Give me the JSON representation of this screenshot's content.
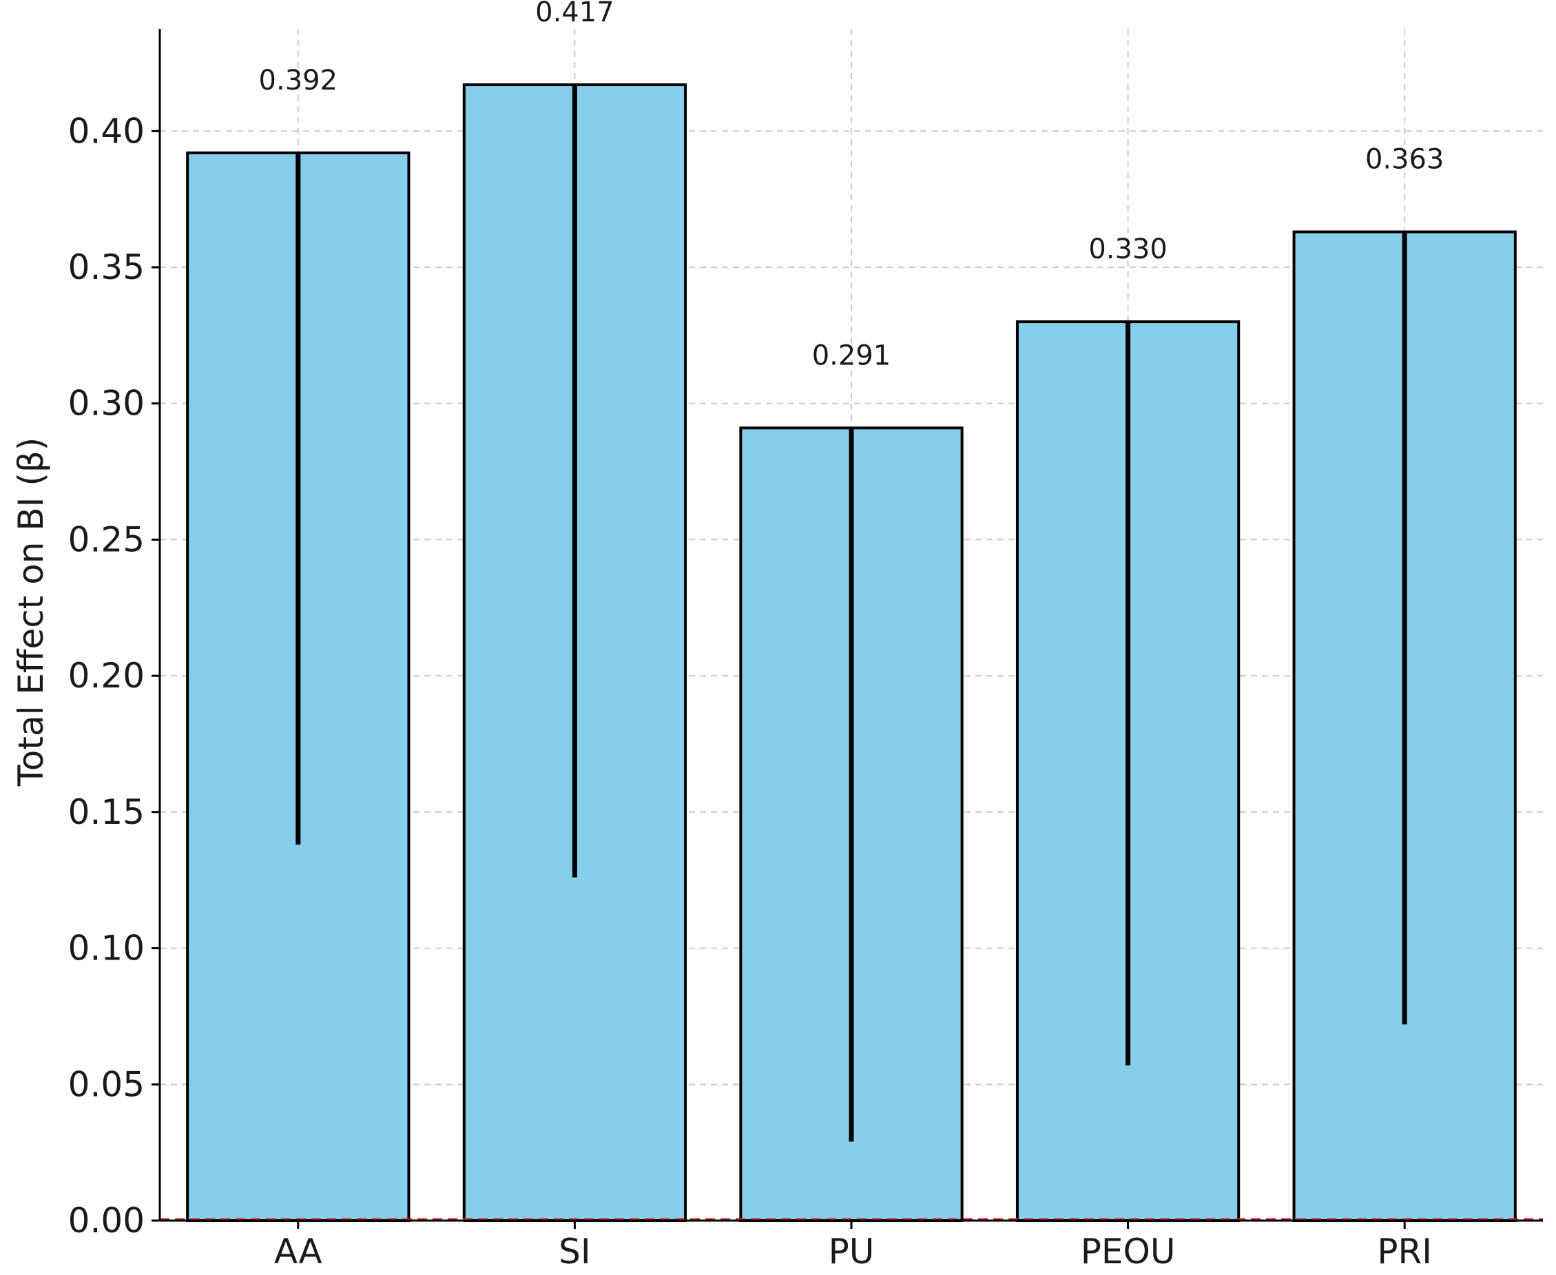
{
  "chart_data": {
    "type": "bar",
    "title": "",
    "xlabel": "",
    "ylabel": "Total Effect on BI (β)",
    "categories": [
      "AA",
      "SI",
      "PU",
      "PEOU",
      "PRI"
    ],
    "values": [
      0.392,
      0.417,
      0.291,
      0.33,
      0.363
    ],
    "data_labels": [
      "0.392",
      "0.417",
      "0.291",
      "0.330",
      "0.363"
    ],
    "error_bars": [
      {
        "low": 0.138,
        "high": 0.392
      },
      {
        "low": 0.126,
        "high": 0.417
      },
      {
        "low": 0.029,
        "high": 0.291
      },
      {
        "low": 0.057,
        "high": 0.33
      },
      {
        "low": 0.072,
        "high": 0.363
      }
    ],
    "ylim": [
      0,
      0.4375
    ],
    "yticks": [
      0.0,
      0.05,
      0.1,
      0.15,
      0.2,
      0.25,
      0.3,
      0.35,
      0.4
    ],
    "ytick_labels": [
      "0.00",
      "0.05",
      "0.10",
      "0.15",
      "0.20",
      "0.25",
      "0.30",
      "0.35",
      "0.40"
    ],
    "reference_line": {
      "y": 0,
      "color": "#d62728",
      "style": "dashed"
    },
    "grid": true,
    "grid_style": "dashed",
    "bar_color": "#87ceeb",
    "bar_edge_color": "#000000",
    "error_color": "#000000",
    "grid_color": "#cccccc"
  }
}
